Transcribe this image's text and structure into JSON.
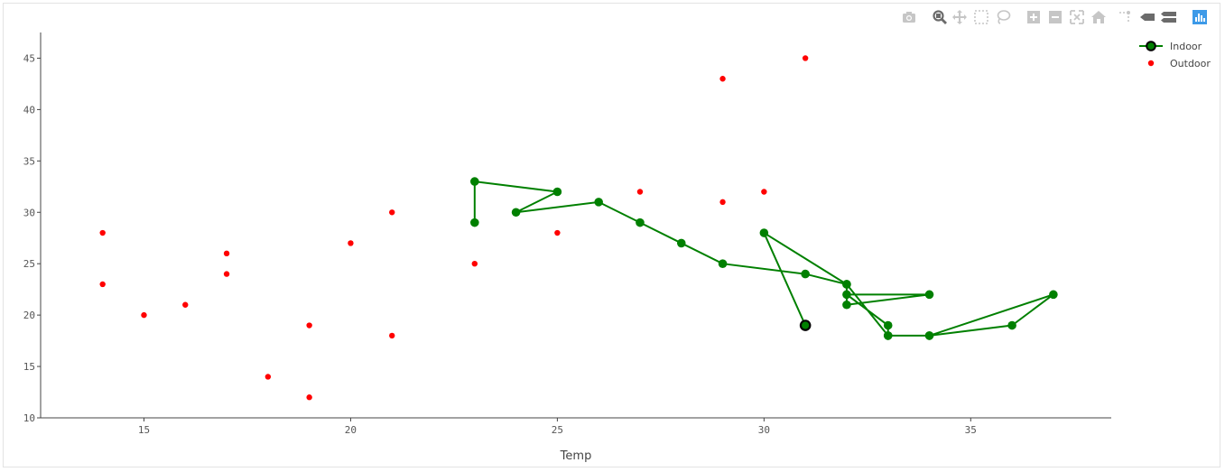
{
  "modebar": {
    "buttons": [
      {
        "name": "camera-icon"
      },
      {
        "name": "zoom-icon"
      },
      {
        "name": "pan-icon"
      },
      {
        "name": "box-select-icon"
      },
      {
        "name": "lasso-select-icon"
      },
      {
        "name": "zoom-in-icon"
      },
      {
        "name": "zoom-out-icon"
      },
      {
        "name": "autoscale-icon"
      },
      {
        "name": "home-icon"
      },
      {
        "name": "spike-lines-icon"
      },
      {
        "name": "hover-closest-icon"
      },
      {
        "name": "hover-compare-icon"
      },
      {
        "name": "plotly-logo-icon"
      }
    ]
  },
  "chart_data": {
    "type": "scatter",
    "xlabel": "Temp",
    "ylabel": "",
    "xlim": [
      12.5,
      38.4
    ],
    "ylim": [
      10,
      47.5
    ],
    "xticks": [
      15,
      20,
      25,
      30,
      35
    ],
    "yticks": [
      10,
      15,
      20,
      25,
      30,
      35,
      40,
      45
    ],
    "grid": false,
    "legend_position": "top-right",
    "series": [
      {
        "name": "Indoor",
        "mode": "lines+markers",
        "color": "#008000",
        "x": [
          23,
          23,
          25,
          24,
          26,
          27,
          28,
          29,
          31,
          32,
          32,
          34,
          32,
          33,
          33,
          34,
          36,
          37,
          34,
          33,
          32,
          30,
          31
        ],
        "y": [
          29,
          33,
          32,
          30,
          31,
          29,
          27,
          25,
          24,
          23,
          21,
          22,
          22,
          19,
          18,
          18,
          19,
          22,
          18,
          18,
          23,
          28,
          19
        ],
        "highlight_index": 22
      },
      {
        "name": "Outdoor",
        "mode": "markers",
        "color": "#ff0000",
        "x": [
          14,
          14,
          15,
          16,
          17,
          17,
          18,
          19,
          19,
          20,
          21,
          21,
          23,
          25,
          27,
          27,
          29,
          29,
          30,
          30,
          31
        ],
        "y": [
          28,
          23,
          20,
          21,
          26,
          24,
          14,
          19,
          12,
          27,
          30,
          18,
          25,
          28,
          32,
          29,
          43,
          31,
          32,
          28,
          45
        ]
      }
    ]
  }
}
